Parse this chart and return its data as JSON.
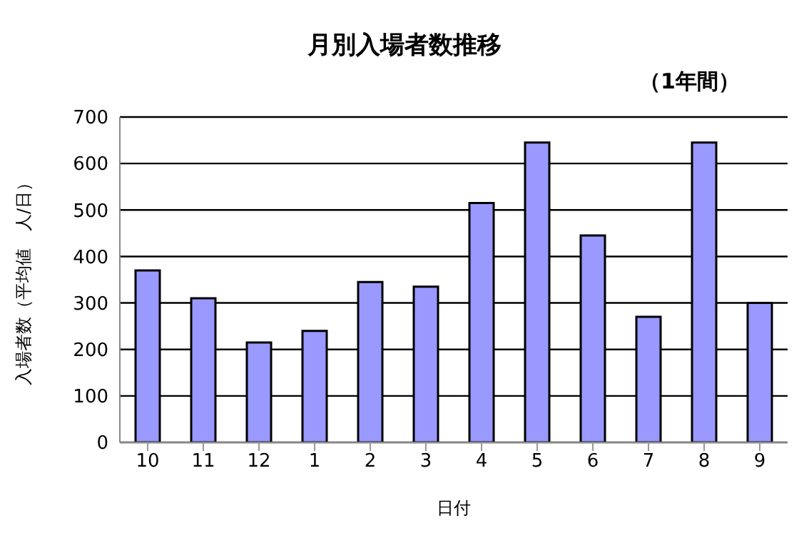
{
  "chart_data": {
    "type": "bar",
    "title": "月別入場者数推移",
    "subtitle": "（1年間）",
    "xlabel": "日付",
    "ylabel": "入場者数（平均値　人/日）",
    "categories": [
      "10",
      "11",
      "12",
      "1",
      "2",
      "3",
      "4",
      "5",
      "6",
      "7",
      "8",
      "9"
    ],
    "values": [
      370,
      310,
      215,
      240,
      345,
      335,
      515,
      645,
      445,
      270,
      645,
      300
    ],
    "color": "#9999ff",
    "ylim": [
      0,
      700
    ],
    "yticks": [
      0,
      100,
      200,
      300,
      400,
      500,
      600,
      700
    ],
    "grid": "y"
  }
}
